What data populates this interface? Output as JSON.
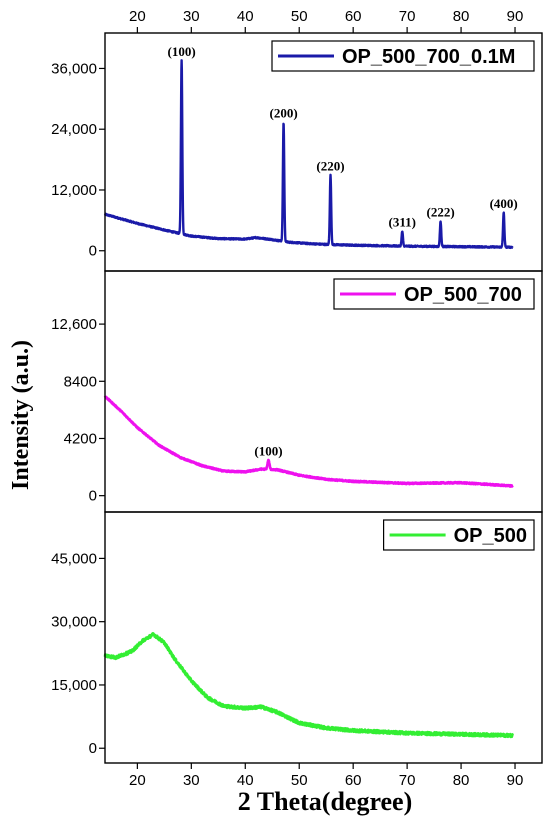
{
  "chart_data": {
    "type": "line",
    "xlabel": "2 Theta(degree)",
    "ylabel": "Intensity (a.u.)",
    "xlim": [
      14,
      95
    ],
    "x_ticks": [
      20,
      30,
      40,
      50,
      60,
      70,
      80,
      90
    ],
    "top_x_ticks": [
      20,
      30,
      40,
      50,
      60,
      70,
      80,
      90
    ],
    "grid": false,
    "panels": [
      {
        "legend": "OP_500_700_0.1M",
        "color": "#1a1aa8",
        "legend_position": "top-right",
        "ylim": [
          -4000,
          43000
        ],
        "y_ticks": [
          0,
          12000,
          24000,
          36000
        ],
        "y_tick_labels": [
          "0",
          "12,000",
          "24,000",
          "36,000"
        ],
        "baseline": [
          [
            14,
            7200
          ],
          [
            20,
            5400
          ],
          [
            25,
            4100
          ],
          [
            27.5,
            3500
          ],
          [
            30,
            2900
          ],
          [
            35,
            2400
          ],
          [
            40,
            2300
          ],
          [
            42,
            2600
          ],
          [
            45,
            2200
          ],
          [
            48,
            1700
          ],
          [
            52,
            1400
          ],
          [
            56,
            1200
          ],
          [
            60,
            1100
          ],
          [
            70,
            900
          ],
          [
            80,
            800
          ],
          [
            90,
            700
          ]
        ],
        "peaks": [
          {
            "label": "(100)",
            "x": 28.2,
            "y": 37500,
            "width": 0.35
          },
          {
            "label": "(200)",
            "x": 47.1,
            "y": 25300,
            "width": 0.35
          },
          {
            "label": "(220)",
            "x": 55.8,
            "y": 14900,
            "width": 0.35
          },
          {
            "label": "(311)",
            "x": 69.1,
            "y": 3800,
            "width": 0.35
          },
          {
            "label": "(222)",
            "x": 76.2,
            "y": 5800,
            "width": 0.35
          },
          {
            "label": "(400)",
            "x": 87.9,
            "y": 7500,
            "width": 0.35
          }
        ]
      },
      {
        "legend": "OP_500_700",
        "color": "#ee11ee",
        "legend_position": "top-right",
        "ylim": [
          -1200,
          16500
        ],
        "y_ticks": [
          0,
          4200,
          8400,
          12600
        ],
        "y_tick_labels": [
          "0",
          "4200",
          "8400",
          "12,600"
        ],
        "baseline": [
          [
            14,
            7300
          ],
          [
            17,
            6200
          ],
          [
            20,
            5000
          ],
          [
            24,
            3700
          ],
          [
            28,
            2800
          ],
          [
            32,
            2200
          ],
          [
            36,
            1800
          ],
          [
            40,
            1750
          ],
          [
            43,
            1950
          ],
          [
            46,
            1900
          ],
          [
            50,
            1500
          ],
          [
            55,
            1200
          ],
          [
            60,
            1050
          ],
          [
            70,
            900
          ],
          [
            80,
            950
          ],
          [
            90,
            700
          ]
        ],
        "peaks": [
          {
            "label": "(100)",
            "x": 44.3,
            "y": 2600,
            "width": 0.5
          }
        ]
      },
      {
        "legend": "OP_500",
        "color": "#33ee33",
        "legend_position": "top-right",
        "ylim": [
          -3500,
          56000
        ],
        "y_ticks": [
          0,
          15000,
          30000,
          45000
        ],
        "y_tick_labels": [
          "0",
          "15,000",
          "30,000",
          "45,000"
        ],
        "baseline": [
          [
            14,
            22000
          ],
          [
            16,
            21500
          ],
          [
            19,
            23000
          ],
          [
            21,
            25500
          ],
          [
            23,
            27000
          ],
          [
            25,
            25000
          ],
          [
            27,
            21000
          ],
          [
            30,
            16000
          ],
          [
            33,
            12000
          ],
          [
            36,
            10000
          ],
          [
            40,
            9500
          ],
          [
            43,
            9800
          ],
          [
            46,
            8500
          ],
          [
            50,
            6000
          ],
          [
            55,
            4800
          ],
          [
            60,
            4200
          ],
          [
            70,
            3600
          ],
          [
            80,
            3300
          ],
          [
            90,
            3000
          ]
        ],
        "peaks": []
      }
    ]
  }
}
